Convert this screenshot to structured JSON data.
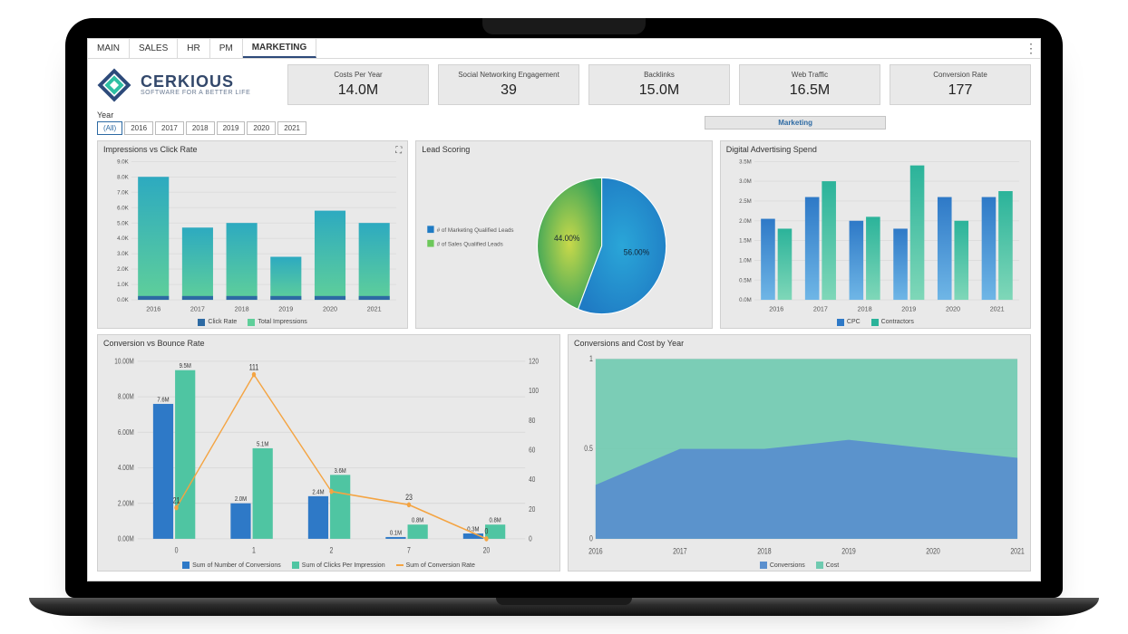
{
  "tabs": {
    "items": [
      "MAIN",
      "SALES",
      "HR",
      "PM",
      "MARKETING"
    ],
    "active_index": 4
  },
  "brand": {
    "name": "CERKIOUS",
    "tagline": "SOFTWARE FOR A BETTER LIFE",
    "logo_colors": {
      "dark": "#2d4a7a",
      "teal": "#2fbfa3"
    }
  },
  "kpis": [
    {
      "label": "Costs Per Year",
      "value": "14.0M"
    },
    {
      "label": "Social Networking Engagement",
      "value": "39"
    },
    {
      "label": "Backlinks",
      "value": "15.0M"
    },
    {
      "label": "Web Traffic",
      "value": "16.5M"
    },
    {
      "label": "Conversion Rate",
      "value": "177"
    }
  ],
  "year_slicer": {
    "label": "Year",
    "options": [
      "(All)",
      "2016",
      "2017",
      "2018",
      "2019",
      "2020",
      "2021"
    ],
    "selected_index": 0
  },
  "segment_pill": "Marketing",
  "impressions_chart": {
    "title": "Impressions vs Click Rate",
    "type": "bar",
    "categories": [
      "2016",
      "2017",
      "2018",
      "2019",
      "2020",
      "2021"
    ],
    "impressions": [
      8.0,
      4.7,
      5.0,
      2.8,
      5.8,
      5.0
    ],
    "click_rate": [
      0.25,
      0.25,
      0.25,
      0.25,
      0.25,
      0.25
    ],
    "ymax": 9.0,
    "ytick": 1.0,
    "yunit": "K",
    "bar_fill_top": "#2daac0",
    "bar_fill_bottom": "#5fcf9a",
    "click_color": "#2d6aa3",
    "bg": "#e9e9e9",
    "grid": "#d6d6d6",
    "legend": [
      {
        "label": "Click Rate",
        "color": "#2d6aa3"
      },
      {
        "label": "Total Impressions",
        "color": "#5fcf9a"
      }
    ]
  },
  "lead_scoring": {
    "title": "Lead Scoring",
    "type": "pie",
    "slices": [
      {
        "label": "# of Marketing Qualified Leads",
        "pct": 56.0,
        "color_outer": "#1f7bc4",
        "color_inner": "#2aa6d8",
        "text": "56.00%"
      },
      {
        "label": "# of Sales Qualified Leads",
        "pct": 44.0,
        "color_outer": "#2fa05a",
        "color_inner": "#c9d94a",
        "text": "44.00%"
      }
    ],
    "legend_colors": [
      "#1f7bc4",
      "#6cc85a"
    ]
  },
  "ad_spend": {
    "title": "Digital Advertising Spend",
    "type": "grouped-bar",
    "categories": [
      "2016",
      "2017",
      "2018",
      "2019",
      "2020",
      "2021"
    ],
    "series": [
      {
        "name": "CPC",
        "color_top": "#2e79c7",
        "color_bottom": "#6fb6e6",
        "values": [
          2.05,
          2.6,
          2.0,
          1.8,
          2.6,
          2.6
        ]
      },
      {
        "name": "Contractors",
        "color_top": "#2bb39a",
        "color_bottom": "#7fd7b8",
        "values": [
          1.8,
          3.0,
          2.1,
          3.4,
          2.0,
          2.75
        ]
      }
    ],
    "ymax": 3.5,
    "ytick": 0.5,
    "yunit": "M",
    "legend": [
      {
        "label": "CPC",
        "color": "#2e79c7"
      },
      {
        "label": "Contractors",
        "color": "#2bb39a"
      }
    ]
  },
  "conv_bounce": {
    "title": "Conversion vs Bounce Rate",
    "type": "grouped-bar+line",
    "categories": [
      "0",
      "1",
      "2",
      "7",
      "20"
    ],
    "bar1": {
      "name": "Sum of Number of Conversions",
      "color": "#2e79c7",
      "values": [
        7.6,
        2.0,
        2.4,
        0.1,
        0.3
      ],
      "labels": [
        "7.6M",
        "2.0M",
        "2.4M",
        "0.1M",
        "0.3M"
      ]
    },
    "bar2": {
      "name": "Sum of Clicks Per Impression",
      "color": "#4fc5a2",
      "values": [
        9.5,
        5.1,
        3.6,
        0.8,
        0.8
      ],
      "labels": [
        "9.5M",
        "5.1M",
        "3.6M",
        "0.8M",
        "0.8M"
      ]
    },
    "line": {
      "name": "Sum of Conversion Rate",
      "color": "#f4a442",
      "values": [
        21,
        111,
        32,
        23,
        0
      ],
      "labels": [
        "21",
        "111",
        "",
        "23",
        "0"
      ]
    },
    "yL": {
      "max": 10.0,
      "tick": 2.0,
      "unit": "M"
    },
    "yR": {
      "max": 120,
      "tick": 20
    }
  },
  "conv_cost_year": {
    "title": "Conversions and Cost by Year",
    "type": "area",
    "categories": [
      "2016",
      "2017",
      "2018",
      "2019",
      "2020",
      "2021"
    ],
    "series": [
      {
        "name": "Cost",
        "color": "#6fcab0",
        "values": [
          1.0,
          1.0,
          1.0,
          1.0,
          1.0,
          1.0
        ]
      },
      {
        "name": "Conversions",
        "color": "#5a8fce",
        "values": [
          0.3,
          0.5,
          0.5,
          0.55,
          0.5,
          0.45
        ]
      }
    ],
    "ymax": 1.0,
    "yticks": [
      0,
      0.5,
      1
    ],
    "legend": [
      {
        "label": "Conversions",
        "color": "#5a8fce"
      },
      {
        "label": "Cost",
        "color": "#6fcab0"
      }
    ]
  },
  "colors": {
    "panel_bg": "#e9e9e9",
    "panel_border": "#d0d0d0",
    "grid": "#d6d6d6"
  }
}
